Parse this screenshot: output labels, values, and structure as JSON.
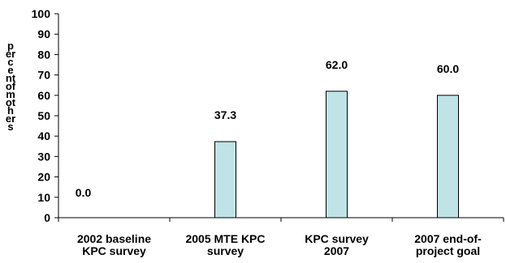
{
  "chart_data": {
    "type": "bar",
    "categories": [
      "2002 baseline KPC survey",
      "2005 MTE KPC survey",
      "KPC survey 2007",
      "2007 end-of-project goal"
    ],
    "category_lines": [
      [
        "2002 baseline",
        "KPC survey"
      ],
      [
        "2005 MTE KPC",
        "survey"
      ],
      [
        "KPC survey",
        "2007"
      ],
      [
        "2007 end-of-",
        "project goal"
      ]
    ],
    "values": [
      0.0,
      37.3,
      62.0,
      60.0
    ],
    "data_labels": [
      "0.0",
      "37.3",
      "62.0",
      "60.0"
    ],
    "ylabel": "percent of mothers",
    "ylim": [
      0,
      100
    ],
    "yticks": [
      0,
      10,
      20,
      30,
      40,
      50,
      60,
      70,
      80,
      90,
      100
    ],
    "grid": false,
    "legend": "none",
    "colors": {
      "bar": "#BFE3E6",
      "bar_stroke": "#000000",
      "axis": "#000000"
    }
  }
}
